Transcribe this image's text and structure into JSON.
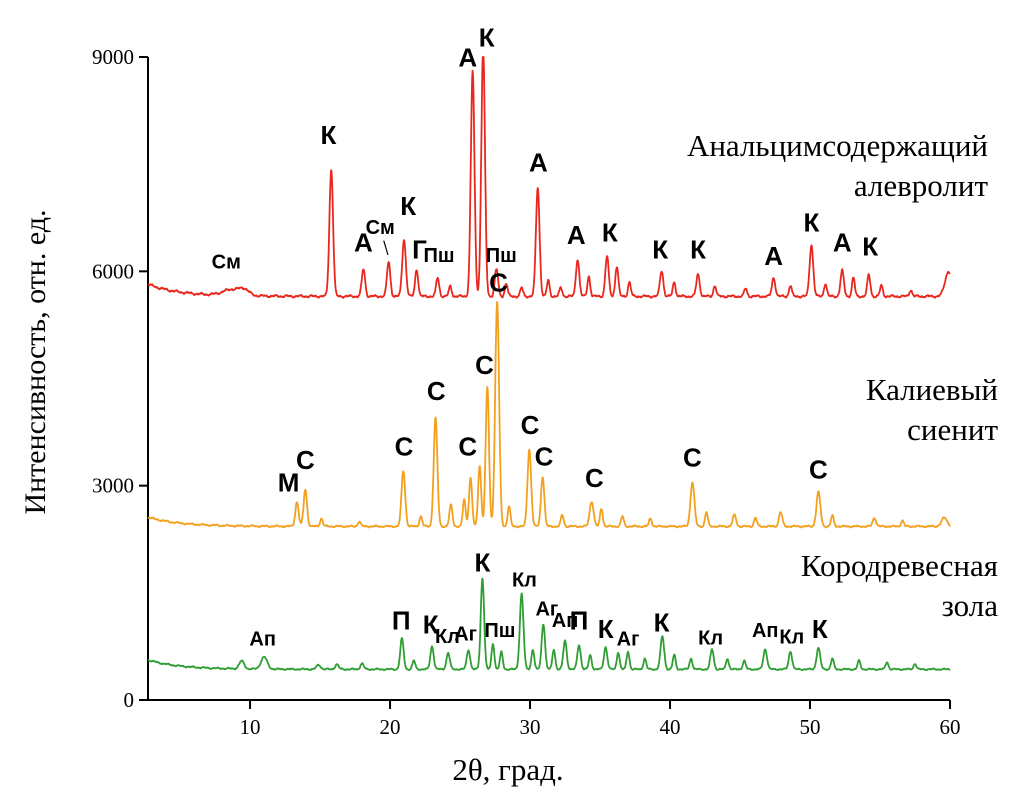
{
  "chart_data": {
    "type": "line",
    "title": "",
    "xlabel": "2θ, град.",
    "ylabel": "Интенсивность, отн. ед.",
    "xlim": [
      2.71,
      60
    ],
    "ylim": [
      0,
      9000
    ],
    "xticks": [
      10,
      20,
      30,
      40,
      50,
      60
    ],
    "yticks": [
      0,
      3000,
      6000,
      9000
    ],
    "grid": false,
    "legend_position": "labels-right-of-curves",
    "series": [
      {
        "name": "Анальцимсодержащий алевролит",
        "name_lines": [
          "Анальцимсодержащий",
          "алевролит"
        ],
        "color": "#e8281e",
        "baseline": 5650,
        "drift": [
          170,
          2.2
        ],
        "noise": 22,
        "peaks": [
          [
            8.8,
            90,
            0.7
          ],
          [
            9.6,
            60,
            0.3
          ],
          [
            15.8,
            1780,
            0.13
          ],
          [
            18.1,
            380,
            0.12
          ],
          [
            19.9,
            480,
            0.12
          ],
          [
            21.0,
            800,
            0.13
          ],
          [
            21.9,
            380,
            0.11
          ],
          [
            23.4,
            260,
            0.11
          ],
          [
            24.3,
            140,
            0.1
          ],
          [
            25.9,
            3150,
            0.13
          ],
          [
            26.65,
            3500,
            0.13
          ],
          [
            27.6,
            380,
            0.12
          ],
          [
            28.3,
            180,
            0.1
          ],
          [
            29.4,
            120,
            0.1
          ],
          [
            30.55,
            1520,
            0.13
          ],
          [
            31.3,
            220,
            0.1
          ],
          [
            32.2,
            120,
            0.1
          ],
          [
            33.4,
            520,
            0.12
          ],
          [
            34.2,
            280,
            0.1
          ],
          [
            35.5,
            560,
            0.12
          ],
          [
            36.2,
            420,
            0.11
          ],
          [
            37.1,
            200,
            0.1
          ],
          [
            39.4,
            360,
            0.12
          ],
          [
            40.3,
            200,
            0.1
          ],
          [
            42.0,
            310,
            0.12
          ],
          [
            43.2,
            150,
            0.1
          ],
          [
            45.4,
            110,
            0.1
          ],
          [
            47.4,
            260,
            0.12
          ],
          [
            48.6,
            150,
            0.1
          ],
          [
            50.1,
            720,
            0.13
          ],
          [
            51.1,
            180,
            0.1
          ],
          [
            52.3,
            360,
            0.12
          ],
          [
            53.1,
            260,
            0.1
          ],
          [
            54.2,
            300,
            0.11
          ],
          [
            55.1,
            150,
            0.1
          ],
          [
            57.2,
            90,
            0.1
          ],
          [
            59.9,
            350,
            0.25
          ]
        ],
        "labels": [
          {
            "text": "См",
            "x": 8.3,
            "y": 6040
          },
          {
            "text": "К",
            "x": 15.6,
            "y": 7780
          },
          {
            "text": "А",
            "x": 18.1,
            "y": 6280
          },
          {
            "text": "См",
            "x": 19.3,
            "y": 6520,
            "leader": [
              19.55,
              6430,
              19.85,
              6230
            ]
          },
          {
            "text": "К",
            "x": 21.3,
            "y": 6790
          },
          {
            "text": "Г",
            "x": 22.1,
            "y": 6180
          },
          {
            "text": "Пш",
            "x": 23.5,
            "y": 6130
          },
          {
            "text": "А",
            "x": 25.55,
            "y": 8870
          },
          {
            "text": "К",
            "x": 26.9,
            "y": 9150
          },
          {
            "text": "Пш",
            "x": 27.95,
            "y": 6130
          },
          {
            "text": "А",
            "x": 30.6,
            "y": 7400
          },
          {
            "text": "А",
            "x": 33.3,
            "y": 6380
          },
          {
            "text": "К",
            "x": 35.7,
            "y": 6420
          },
          {
            "text": "К",
            "x": 39.3,
            "y": 6180
          },
          {
            "text": "К",
            "x": 42.0,
            "y": 6180
          },
          {
            "text": "А",
            "x": 47.4,
            "y": 6090
          },
          {
            "text": "К",
            "x": 50.1,
            "y": 6560
          },
          {
            "text": "А",
            "x": 52.3,
            "y": 6280
          },
          {
            "text": "К",
            "x": 54.3,
            "y": 6220
          }
        ]
      },
      {
        "name": "Калиевый сиенит",
        "name_lines": [
          "Калиевый",
          "сиенит"
        ],
        "color": "#f3a01f",
        "baseline": 2430,
        "drift": [
          130,
          2.2
        ],
        "noise": 16,
        "peaks": [
          [
            13.35,
            340,
            0.12
          ],
          [
            13.95,
            520,
            0.12
          ],
          [
            15.1,
            110,
            0.1
          ],
          [
            17.8,
            70,
            0.1
          ],
          [
            20.95,
            780,
            0.13
          ],
          [
            22.2,
            140,
            0.1
          ],
          [
            23.25,
            1520,
            0.13
          ],
          [
            24.35,
            300,
            0.11
          ],
          [
            25.3,
            380,
            0.1
          ],
          [
            25.75,
            680,
            0.11
          ],
          [
            26.4,
            850,
            0.11
          ],
          [
            26.95,
            1950,
            0.12
          ],
          [
            27.65,
            3150,
            0.14
          ],
          [
            28.5,
            280,
            0.1
          ],
          [
            29.95,
            1080,
            0.13
          ],
          [
            30.9,
            700,
            0.12
          ],
          [
            32.3,
            160,
            0.1
          ],
          [
            34.4,
            350,
            0.14
          ],
          [
            35.1,
            250,
            0.1
          ],
          [
            36.6,
            140,
            0.1
          ],
          [
            38.6,
            110,
            0.1
          ],
          [
            41.6,
            620,
            0.14
          ],
          [
            42.6,
            200,
            0.1
          ],
          [
            44.6,
            160,
            0.12
          ],
          [
            46.1,
            120,
            0.1
          ],
          [
            47.9,
            200,
            0.12
          ],
          [
            50.6,
            480,
            0.14
          ],
          [
            51.6,
            150,
            0.1
          ],
          [
            54.6,
            120,
            0.12
          ],
          [
            56.6,
            80,
            0.1
          ],
          [
            59.6,
            120,
            0.2
          ]
        ],
        "labels": [
          {
            "text": "М",
            "x": 12.75,
            "y": 2920
          },
          {
            "text": "С",
            "x": 13.95,
            "y": 3230
          },
          {
            "text": "С",
            "x": 21.0,
            "y": 3420
          },
          {
            "text": "С",
            "x": 23.3,
            "y": 4200
          },
          {
            "text": "С",
            "x": 25.55,
            "y": 3420
          },
          {
            "text": "С",
            "x": 26.75,
            "y": 4560
          },
          {
            "text": "С",
            "x": 27.75,
            "y": 5720
          },
          {
            "text": "С",
            "x": 30.0,
            "y": 3720
          },
          {
            "text": "С",
            "x": 31.0,
            "y": 3280
          },
          {
            "text": "С",
            "x": 34.6,
            "y": 2980
          },
          {
            "text": "С",
            "x": 41.6,
            "y": 3270
          },
          {
            "text": "С",
            "x": 50.6,
            "y": 3100
          }
        ]
      },
      {
        "name": "Кородревесная зола",
        "name_lines": [
          "Кородревесная",
          "зола"
        ],
        "color": "#2f9e33",
        "baseline": 430,
        "drift": [
          130,
          2.2
        ],
        "noise": 14,
        "peaks": [
          [
            9.4,
            110,
            0.18
          ],
          [
            11.0,
            170,
            0.22
          ],
          [
            14.9,
            60,
            0.15
          ],
          [
            16.2,
            70,
            0.12
          ],
          [
            18.0,
            80,
            0.12
          ],
          [
            20.85,
            430,
            0.12
          ],
          [
            21.7,
            120,
            0.1
          ],
          [
            23.0,
            320,
            0.12
          ],
          [
            24.15,
            230,
            0.12
          ],
          [
            25.6,
            270,
            0.12
          ],
          [
            26.6,
            1280,
            0.12
          ],
          [
            27.35,
            360,
            0.1
          ],
          [
            27.95,
            240,
            0.1
          ],
          [
            29.4,
            1060,
            0.13
          ],
          [
            30.2,
            280,
            0.1
          ],
          [
            30.95,
            640,
            0.12
          ],
          [
            31.7,
            280,
            0.1
          ],
          [
            32.5,
            400,
            0.12
          ],
          [
            33.5,
            340,
            0.12
          ],
          [
            34.3,
            200,
            0.1
          ],
          [
            35.4,
            310,
            0.12
          ],
          [
            36.3,
            240,
            0.1
          ],
          [
            37.0,
            250,
            0.1
          ],
          [
            38.2,
            150,
            0.1
          ],
          [
            39.45,
            460,
            0.13
          ],
          [
            40.3,
            200,
            0.1
          ],
          [
            41.5,
            150,
            0.1
          ],
          [
            43.0,
            280,
            0.12
          ],
          [
            44.1,
            150,
            0.1
          ],
          [
            45.3,
            120,
            0.1
          ],
          [
            46.8,
            280,
            0.13
          ],
          [
            48.6,
            250,
            0.12
          ],
          [
            50.6,
            300,
            0.13
          ],
          [
            51.6,
            150,
            0.1
          ],
          [
            53.5,
            120,
            0.1
          ],
          [
            55.5,
            100,
            0.1
          ],
          [
            57.5,
            80,
            0.1
          ]
        ],
        "labels": [
          {
            "text": "Ап",
            "x": 10.9,
            "y": 760
          },
          {
            "text": "П",
            "x": 20.8,
            "y": 990
          },
          {
            "text": "К",
            "x": 22.9,
            "y": 930
          },
          {
            "text": "Кл",
            "x": 24.1,
            "y": 800
          },
          {
            "text": "Аг",
            "x": 25.4,
            "y": 830
          },
          {
            "text": "К",
            "x": 26.6,
            "y": 1800
          },
          {
            "text": "Пш",
            "x": 27.85,
            "y": 880
          },
          {
            "text": "Кл",
            "x": 29.6,
            "y": 1590
          },
          {
            "text": "Аг",
            "x": 31.2,
            "y": 1180
          },
          {
            "text": "Ап",
            "x": 32.5,
            "y": 1020
          },
          {
            "text": "П",
            "x": 33.5,
            "y": 990
          },
          {
            "text": "К",
            "x": 35.4,
            "y": 870
          },
          {
            "text": "Аг",
            "x": 37.0,
            "y": 760
          },
          {
            "text": "К",
            "x": 39.4,
            "y": 960
          },
          {
            "text": "Кл",
            "x": 42.9,
            "y": 780
          },
          {
            "text": "Ап",
            "x": 46.8,
            "y": 880
          },
          {
            "text": "Кл",
            "x": 48.7,
            "y": 790
          },
          {
            "text": "К",
            "x": 50.7,
            "y": 870
          }
        ]
      }
    ]
  }
}
